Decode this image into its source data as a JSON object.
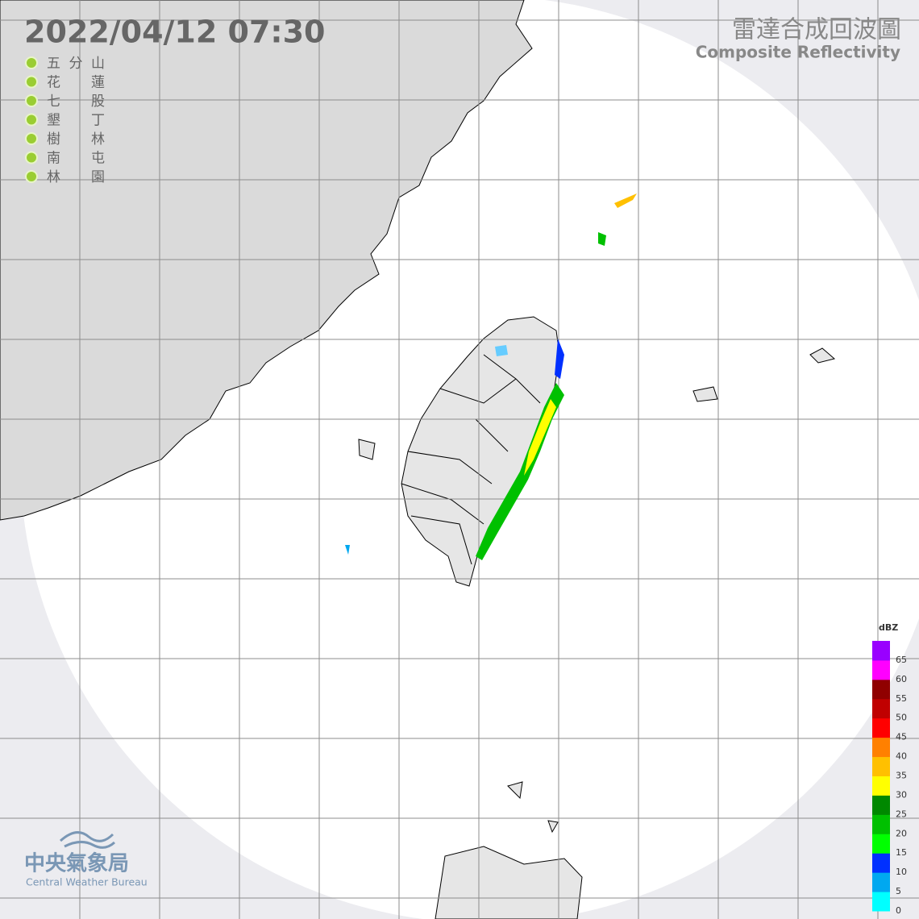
{
  "header": {
    "timestamp": "2022/04/12  07:30",
    "title": "雷達合成回波圖",
    "subtitle": "Composite Reflectivity"
  },
  "stations": [
    "五分山",
    "花蓮",
    "七股",
    "墾丁",
    "樹林",
    "南屯",
    "林園"
  ],
  "legend": {
    "unit": "dBZ",
    "ticks": [
      0,
      5,
      10,
      15,
      20,
      25,
      30,
      35,
      40,
      45,
      50,
      55,
      60,
      65
    ],
    "colors": [
      "#00ffff",
      "#00a8f0",
      "#0030ff",
      "#00ff00",
      "#00c000",
      "#008800",
      "#ffff00",
      "#ffc000",
      "#ff8000",
      "#ff0000",
      "#c00000",
      "#900000",
      "#ff00ff",
      "#9900ff"
    ]
  },
  "logo": {
    "name": "中央氣象局",
    "english": "Central Weather Bureau"
  }
}
